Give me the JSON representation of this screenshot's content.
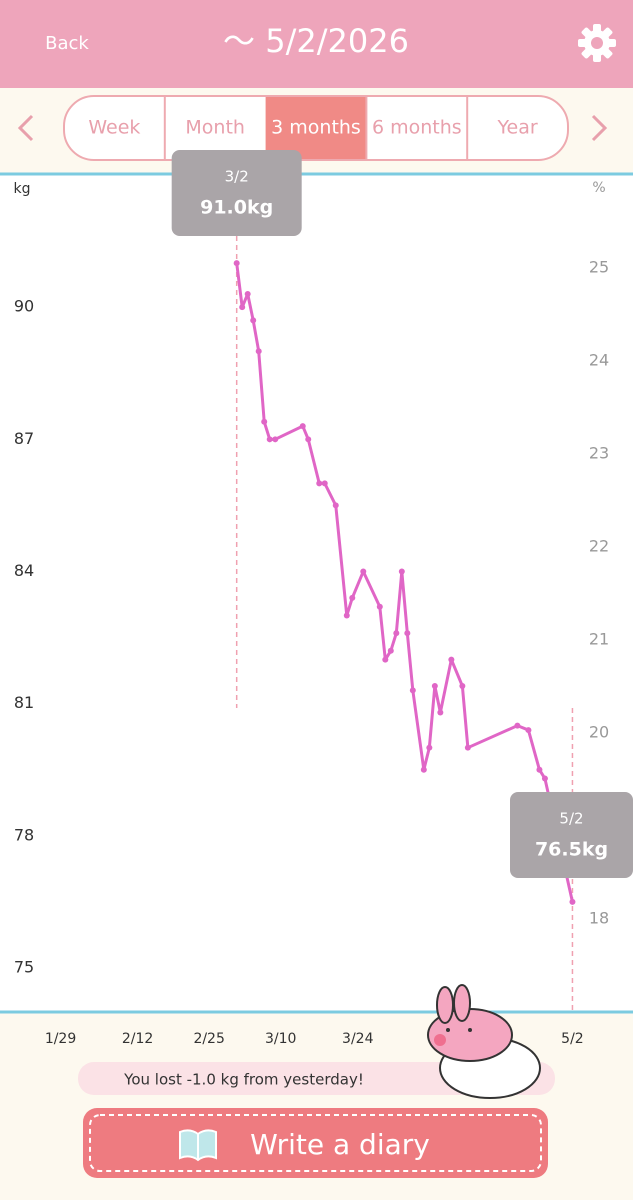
{
  "header": {
    "back": "Back",
    "title": "～ 5/2/2026"
  },
  "tabs": [
    "Week",
    "Month",
    "3 months",
    "6 months",
    "Year"
  ],
  "selected_tab": 2,
  "chart_data": {
    "type": "line",
    "y_unit": "kg",
    "y2_unit": "%",
    "color": "#e066c6",
    "x": [
      "3/2",
      "3/3",
      "3/4",
      "3/5",
      "3/6",
      "3/7",
      "3/8",
      "3/9",
      "3/14",
      "3/15",
      "3/17",
      "3/18",
      "3/20",
      "3/22",
      "3/23",
      "3/25",
      "3/28",
      "3/29",
      "3/30",
      "3/31",
      "4/1",
      "4/2",
      "4/3",
      "4/5",
      "4/6",
      "4/7",
      "4/8",
      "4/10",
      "4/12",
      "4/13",
      "4/22",
      "4/24",
      "4/26",
      "4/27",
      "5/2"
    ],
    "values": [
      91.0,
      90.0,
      90.3,
      89.7,
      89.0,
      87.4,
      87.0,
      87.0,
      87.3,
      87.0,
      86.0,
      86.0,
      85.5,
      83.0,
      83.4,
      84.0,
      83.2,
      82.0,
      82.2,
      82.6,
      84.0,
      82.6,
      81.3,
      79.5,
      80.0,
      81.4,
      80.8,
      82.0,
      81.4,
      80.0,
      80.5,
      80.4,
      79.5,
      79.3,
      76.5
    ],
    "xlim": [
      "1/18",
      "5/13"
    ],
    "xticks": [
      "1/29",
      "2/12",
      "2/25",
      "3/10",
      "3/24",
      "5/2"
    ],
    "ylim": [
      74,
      93
    ],
    "yticks": [
      75,
      78,
      81,
      84,
      87,
      90
    ],
    "y2lim": [
      17,
      26
    ],
    "y2ticks": [
      18,
      20,
      21,
      22,
      23,
      24,
      25
    ],
    "annotations": [
      {
        "x": "3/2",
        "text": "91.0kg"
      },
      {
        "x": "5/2",
        "text": "76.5kg"
      }
    ]
  },
  "message": "You lost -1.0 kg from yesterday!",
  "button": "Write a diary"
}
